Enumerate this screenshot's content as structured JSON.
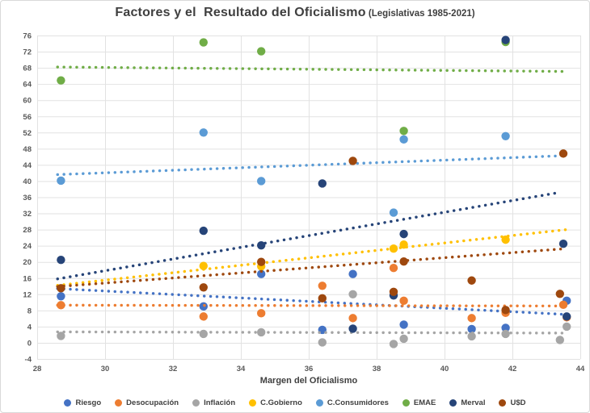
{
  "title": "Factores y el  Resultado del Oficialismo",
  "subtitle": "(Legislativas 1985-2021)",
  "chart_data": {
    "type": "scatter",
    "title": "Factores y el  Resultado del Oficialismo",
    "subtitle": "(Legislativas 1985-2021)",
    "xlabel": "Margen del Oficialismo",
    "ylabel": "",
    "xlim": [
      28,
      44
    ],
    "ylim": [
      -4,
      76
    ],
    "x_ticks": [
      28,
      30,
      32,
      34,
      36,
      38,
      40,
      42,
      44
    ],
    "y_ticks": [
      -4,
      0,
      4,
      8,
      12,
      16,
      20,
      24,
      28,
      32,
      36,
      40,
      44,
      48,
      52,
      56,
      60,
      64,
      68,
      72,
      76
    ],
    "grid": true,
    "legend_position": "bottom",
    "series": [
      {
        "name": "Riesgo",
        "color": "#4472C4",
        "points": [
          [
            28.7,
            11.5
          ],
          [
            32.9,
            9.0
          ],
          [
            34.6,
            17.0
          ],
          [
            36.4,
            3.2
          ],
          [
            37.3,
            17.0
          ],
          [
            38.8,
            4.5
          ],
          [
            40.8,
            3.4
          ],
          [
            41.8,
            3.7
          ],
          [
            43.6,
            10.4
          ]
        ],
        "trend": {
          "x": [
            28.6,
            43.6
          ],
          "y": [
            13.4,
            7.0
          ]
        }
      },
      {
        "name": "Desocupación",
        "color": "#ED7D31",
        "points": [
          [
            28.7,
            9.3
          ],
          [
            32.9,
            6.5
          ],
          [
            34.6,
            7.3
          ],
          [
            36.4,
            14.1
          ],
          [
            37.3,
            6.1
          ],
          [
            38.5,
            18.5
          ],
          [
            38.8,
            10.4
          ],
          [
            40.8,
            6.1
          ],
          [
            41.8,
            7.4
          ],
          [
            43.5,
            9.4
          ],
          [
            43.6,
            6.3
          ]
        ],
        "trend": {
          "x": [
            28.6,
            43.6
          ],
          "y": [
            9.3,
            9.1
          ]
        }
      },
      {
        "name": "Inflación",
        "color": "#A5A5A5",
        "points": [
          [
            28.7,
            1.7
          ],
          [
            32.9,
            2.2
          ],
          [
            34.6,
            2.6
          ],
          [
            36.4,
            0.1
          ],
          [
            37.3,
            12.0
          ],
          [
            38.5,
            -0.3
          ],
          [
            38.8,
            1.0
          ],
          [
            40.8,
            1.6
          ],
          [
            41.8,
            2.2
          ],
          [
            43.4,
            0.7
          ],
          [
            43.6,
            4.0
          ]
        ],
        "trend": {
          "x": [
            28.6,
            43.6
          ],
          "y": [
            2.7,
            2.4
          ]
        }
      },
      {
        "name": "C.Gobierno",
        "color": "#FFC000",
        "points": [
          [
            32.9,
            19.0
          ],
          [
            34.6,
            18.9
          ],
          [
            38.5,
            23.3
          ],
          [
            38.8,
            24.3
          ],
          [
            41.8,
            25.5
          ]
        ],
        "trend": {
          "x": [
            28.6,
            43.6
          ],
          "y": [
            14.2,
            28.0
          ]
        }
      },
      {
        "name": "C.Consumidores",
        "color": "#5B9BD5",
        "points": [
          [
            28.7,
            40.1
          ],
          [
            32.9,
            52.0
          ],
          [
            34.6,
            40.0
          ],
          [
            38.5,
            32.2
          ],
          [
            38.8,
            50.3
          ],
          [
            41.8,
            51.1
          ]
        ],
        "trend": {
          "x": [
            28.6,
            43.6
          ],
          "y": [
            41.6,
            46.3
          ]
        }
      },
      {
        "name": "EMAE",
        "color": "#70AD47",
        "points": [
          [
            28.7,
            64.9
          ],
          [
            32.9,
            74.3
          ],
          [
            34.6,
            72.1
          ],
          [
            38.8,
            52.4
          ],
          [
            41.8,
            74.4
          ]
        ],
        "trend": {
          "x": [
            28.6,
            43.6
          ],
          "y": [
            68.2,
            67.1
          ]
        }
      },
      {
        "name": "Merval",
        "color": "#264478",
        "points": [
          [
            28.7,
            20.5
          ],
          [
            32.9,
            27.7
          ],
          [
            34.6,
            24.1
          ],
          [
            36.4,
            39.4
          ],
          [
            37.3,
            3.5
          ],
          [
            38.5,
            11.7
          ],
          [
            38.8,
            26.9
          ],
          [
            41.8,
            74.9
          ],
          [
            43.5,
            24.5
          ],
          [
            43.6,
            6.5
          ]
        ],
        "trend": {
          "x": [
            28.6,
            43.4
          ],
          "y": [
            15.8,
            37.2
          ]
        }
      },
      {
        "name": "U$D",
        "color": "#9E480E",
        "points": [
          [
            28.7,
            13.5
          ],
          [
            32.9,
            13.7
          ],
          [
            34.6,
            20.0
          ],
          [
            36.4,
            11.0
          ],
          [
            37.3,
            45.0
          ],
          [
            38.5,
            12.6
          ],
          [
            38.8,
            20.1
          ],
          [
            40.8,
            15.4
          ],
          [
            41.8,
            8.1
          ],
          [
            43.4,
            12.1
          ],
          [
            43.5,
            46.8
          ]
        ],
        "trend": {
          "x": [
            28.6,
            43.6
          ],
          "y": [
            13.9,
            23.3
          ]
        }
      }
    ],
    "style": {
      "grid_color": "#E2E2E2",
      "tick_color": "#595959",
      "axis_title_color": "#404040",
      "title_color": "#3F3F3F"
    }
  }
}
